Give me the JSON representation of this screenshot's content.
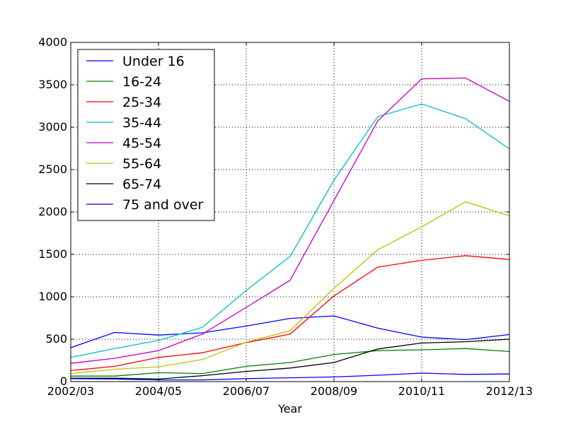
{
  "chart_data": {
    "type": "line",
    "title": "",
    "xlabel": "Year",
    "ylabel": "",
    "x_ticks": [
      "2002/03",
      "2004/05",
      "2006/07",
      "2008/09",
      "2010/11",
      "2012/13"
    ],
    "x_index_range": [
      0,
      10
    ],
    "ylim": [
      0,
      4000
    ],
    "y_ticks": [
      "0",
      "500",
      "1000",
      "1500",
      "2000",
      "2500",
      "3000",
      "3500",
      "4000"
    ],
    "grid": true,
    "legend_position": "top-left",
    "series": [
      {
        "name": "Under 16",
        "color": "#0000ff",
        "values": [
          400,
          580,
          548,
          575,
          655,
          745,
          775,
          630,
          525,
          495,
          555
        ]
      },
      {
        "name": "16-24",
        "color": "#008000",
        "values": [
          65,
          65,
          105,
          95,
          180,
          225,
          320,
          365,
          375,
          390,
          355
        ]
      },
      {
        "name": "25-34",
        "color": "#ff0000",
        "values": [
          130,
          180,
          285,
          340,
          460,
          560,
          1010,
          1350,
          1430,
          1485,
          1440
        ]
      },
      {
        "name": "35-44",
        "color": "#00bfbf",
        "values": [
          285,
          390,
          485,
          640,
          1075,
          1475,
          2375,
          3125,
          3275,
          3100,
          2745
        ]
      },
      {
        "name": "45-54",
        "color": "#bf00bf",
        "values": [
          215,
          275,
          365,
          560,
          875,
          1195,
          2135,
          3075,
          3570,
          3580,
          3305
        ]
      },
      {
        "name": "55-64",
        "color": "#bfbf00",
        "values": [
          95,
          145,
          175,
          260,
          465,
          600,
          1100,
          1555,
          1825,
          2120,
          1955
        ]
      },
      {
        "name": "65-74",
        "color": "#000000",
        "values": [
          40,
          40,
          30,
          70,
          120,
          160,
          225,
          385,
          455,
          470,
          500
        ]
      },
      {
        "name": "75 and over",
        "color": "#0000ff",
        "values": [
          35,
          30,
          20,
          20,
          35,
          45,
          55,
          75,
          100,
          85,
          90
        ]
      }
    ]
  }
}
